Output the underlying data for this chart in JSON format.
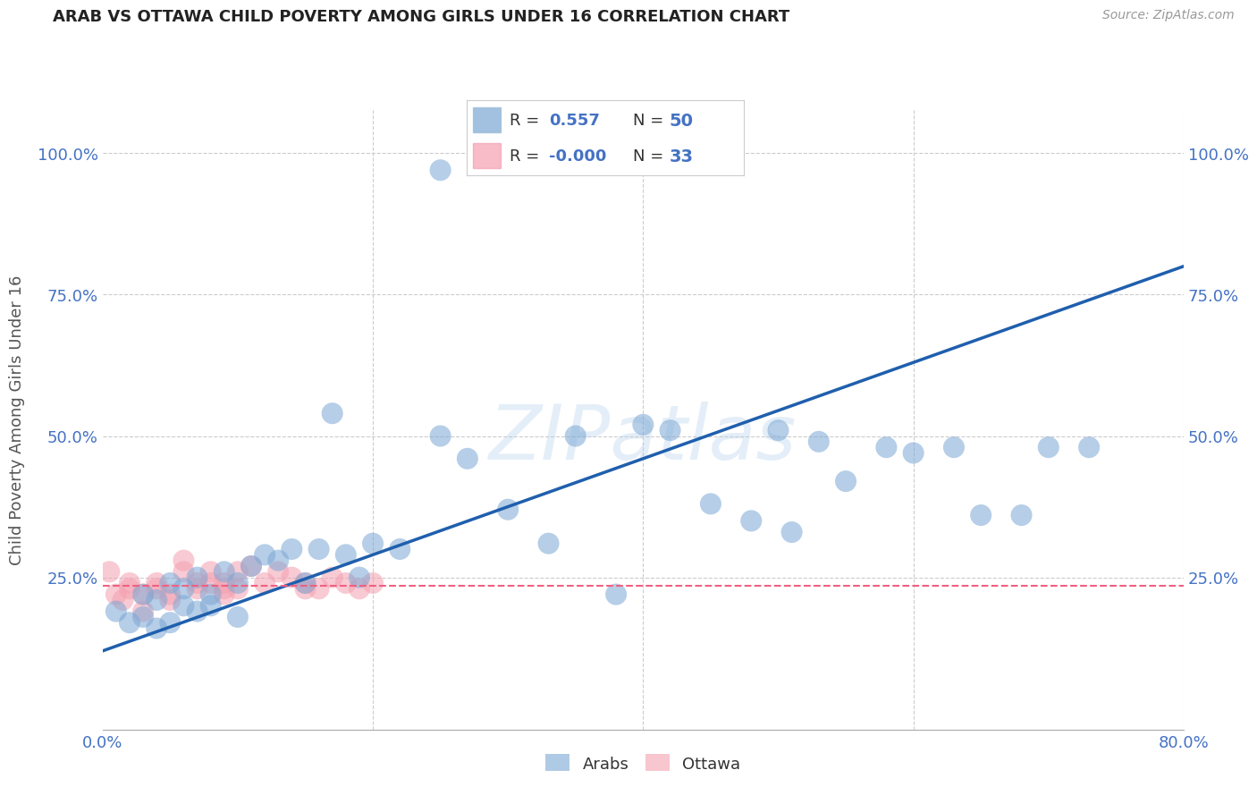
{
  "title": "ARAB VS OTTAWA CHILD POVERTY AMONG GIRLS UNDER 16 CORRELATION CHART",
  "source": "Source: ZipAtlas.com",
  "tick_color": "#4472C4",
  "ylabel": "Child Poverty Among Girls Under 16",
  "xlim": [
    0.0,
    0.8
  ],
  "ylim": [
    -0.02,
    1.08
  ],
  "xticks": [
    0.0,
    0.2,
    0.4,
    0.6,
    0.8
  ],
  "xtick_labels": [
    "0.0%",
    "",
    "",
    "",
    "80.0%"
  ],
  "yticks": [
    0.25,
    0.5,
    0.75,
    1.0
  ],
  "ytick_labels": [
    "25.0%",
    "50.0%",
    "75.0%",
    "100.0%"
  ],
  "legend_r_arab": "0.557",
  "legend_n_arab": "50",
  "legend_r_ottawa": "-0.000",
  "legend_n_ottawa": "33",
  "arab_color": "#7BA7D4",
  "ottawa_color": "#F4A0B0",
  "trend_blue": "#1F5FAD",
  "trend_pink": "#F06080",
  "watermark": "ZIPatlas",
  "arab_x": [
    0.01,
    0.02,
    0.03,
    0.03,
    0.04,
    0.04,
    0.05,
    0.05,
    0.06,
    0.06,
    0.07,
    0.07,
    0.08,
    0.08,
    0.09,
    0.1,
    0.1,
    0.11,
    0.12,
    0.13,
    0.14,
    0.15,
    0.16,
    0.17,
    0.18,
    0.19,
    0.2,
    0.22,
    0.25,
    0.27,
    0.3,
    0.33,
    0.35,
    0.38,
    0.4,
    0.42,
    0.45,
    0.48,
    0.5,
    0.51,
    0.53,
    0.55,
    0.58,
    0.6,
    0.63,
    0.65,
    0.68,
    0.7,
    0.73,
    0.25
  ],
  "arab_y": [
    0.19,
    0.17,
    0.18,
    0.22,
    0.16,
    0.21,
    0.17,
    0.24,
    0.2,
    0.23,
    0.19,
    0.25,
    0.22,
    0.2,
    0.26,
    0.18,
    0.24,
    0.27,
    0.29,
    0.28,
    0.3,
    0.24,
    0.3,
    0.54,
    0.29,
    0.25,
    0.31,
    0.3,
    0.5,
    0.46,
    0.37,
    0.31,
    0.5,
    0.22,
    0.52,
    0.51,
    0.38,
    0.35,
    0.51,
    0.33,
    0.49,
    0.42,
    0.48,
    0.47,
    0.48,
    0.36,
    0.36,
    0.48,
    0.48,
    0.97
  ],
  "ottawa_x": [
    0.005,
    0.01,
    0.015,
    0.02,
    0.02,
    0.03,
    0.03,
    0.04,
    0.04,
    0.05,
    0.05,
    0.06,
    0.06,
    0.07,
    0.07,
    0.08,
    0.08,
    0.09,
    0.09,
    0.09,
    0.1,
    0.1,
    0.11,
    0.12,
    0.13,
    0.14,
    0.15,
    0.15,
    0.16,
    0.17,
    0.18,
    0.19,
    0.2
  ],
  "ottawa_y": [
    0.26,
    0.22,
    0.21,
    0.24,
    0.23,
    0.19,
    0.22,
    0.24,
    0.23,
    0.22,
    0.21,
    0.28,
    0.26,
    0.24,
    0.23,
    0.26,
    0.24,
    0.23,
    0.24,
    0.22,
    0.26,
    0.23,
    0.27,
    0.24,
    0.26,
    0.25,
    0.23,
    0.24,
    0.23,
    0.25,
    0.24,
    0.23,
    0.24
  ],
  "arab_trend_x": [
    0.0,
    0.8
  ],
  "arab_trend_y": [
    0.12,
    0.8
  ],
  "ottawa_trend_y": 0.235
}
